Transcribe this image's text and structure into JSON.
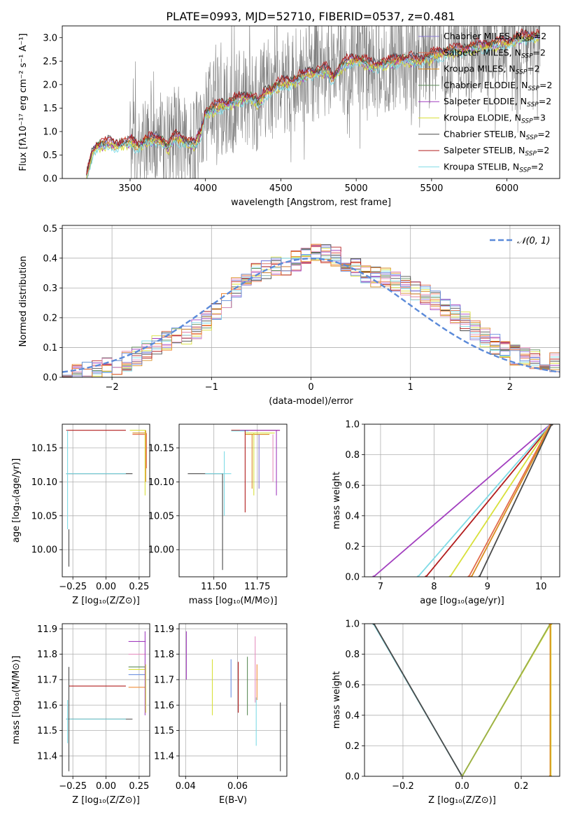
{
  "title": "PLATE=0993, MJD=52710, FIBERID=0537, z=0.481",
  "colors": {
    "data": "#808080",
    "Chabrier MILES": "#8c7bd4",
    "Salpeter MILES": "#e26b4b",
    "Kroupa MILES": "#d98c1f",
    "Chabrier ELODIE": "#5f8d5a",
    "Salpeter ELODIE": "#a23fbf",
    "Kroupa ELODIE": "#d8e03a",
    "Chabrier STELIB": "#4a4a4a",
    "Salpeter STELIB": "#b21d1d",
    "Kroupa STELIB": "#7fdbe6",
    "pink": "#e58fbf",
    "blue": "#6c8fe0",
    "olive": "#9ab04a",
    "orange": "#ef8d3a",
    "gaussian": "#5b8ad9",
    "grid": "#b0b0b0"
  },
  "chart_data": [
    {
      "id": "spectrum",
      "type": "line",
      "title": "PLATE=0993, MJD=52710, FIBERID=0537, z=0.481",
      "xlabel": "wavelength [Angstrom, rest frame]",
      "ylabel": "Flux [fλ10⁻¹⁷ erg cm⁻² s⁻¹ A⁻¹]",
      "xlim": [
        3050,
        6350
      ],
      "ylim": [
        0,
        3.25
      ],
      "xticks": [
        3500,
        4000,
        4500,
        5000,
        5500,
        6000
      ],
      "yticks": [
        0.0,
        0.5,
        1.0,
        1.5,
        2.0,
        2.5,
        3.0
      ],
      "grid": false,
      "legend_position": "top-right",
      "legend": [
        {
          "label": "Chabrier MILES, N",
          "sub": "SSP",
          "suffix": "=2"
        },
        {
          "label": "Salpeter MILES, N",
          "sub": "SSP",
          "suffix": "=2"
        },
        {
          "label": "Kroupa MILES, N",
          "sub": "SSP",
          "suffix": "=2"
        },
        {
          "label": "Chabrier ELODIE, N",
          "sub": "SSP",
          "suffix": "=2"
        },
        {
          "label": "Salpeter ELODIE, N",
          "sub": "SSP",
          "suffix": "=2"
        },
        {
          "label": "Kroupa ELODIE, N",
          "sub": "SSP",
          "suffix": "=3"
        },
        {
          "label": "Chabrier STELIB, N",
          "sub": "SSP",
          "suffix": "=2"
        },
        {
          "label": "Salpeter STELIB, N",
          "sub": "SSP",
          "suffix": "=2"
        },
        {
          "label": "Kroupa STELIB, N",
          "sub": "SSP",
          "suffix": "=2"
        }
      ],
      "model_anchor": {
        "x": [
          3210,
          3250,
          3280,
          3350,
          3400,
          3500,
          3560,
          3600,
          3700,
          3750,
          3800,
          3860,
          3930,
          3970,
          4000,
          4100,
          4200,
          4300,
          4350,
          4400,
          4500,
          4600,
          4700,
          4800,
          4850,
          4900,
          5000,
          5100,
          5200,
          5300,
          5400,
          5500,
          5600,
          5700,
          5800,
          5900,
          6000,
          6100,
          6220
        ],
        "y": [
          0.0,
          0.55,
          0.7,
          0.75,
          0.72,
          0.78,
          0.7,
          0.8,
          0.85,
          0.65,
          0.9,
          0.8,
          0.7,
          1.0,
          1.4,
          1.55,
          1.65,
          1.75,
          1.6,
          1.85,
          2.0,
          2.1,
          2.25,
          2.3,
          2.15,
          2.4,
          2.55,
          2.4,
          2.45,
          2.55,
          2.5,
          2.6,
          2.7,
          2.75,
          2.8,
          2.85,
          2.9,
          3.0,
          3.05
        ]
      },
      "data_range": [
        3210,
        6220
      ]
    },
    {
      "id": "residuals",
      "type": "line",
      "xlabel": "(data-model)/error",
      "ylabel": "Normed distribution",
      "xlim": [
        -2.5,
        2.5
      ],
      "ylim": [
        0,
        0.51
      ],
      "xticks": [
        -2,
        -1,
        0,
        1,
        2
      ],
      "yticks": [
        0.0,
        0.1,
        0.2,
        0.3,
        0.4,
        0.5
      ],
      "grid": true,
      "legend_position": "top-right",
      "gaussian_label": "𝒩(0, 1)",
      "bin_edges_range": [
        -2.5,
        2.5
      ],
      "bin_width": 0.1,
      "hist_envelope_x": [
        -2.5,
        -2.2,
        -2.0,
        -1.8,
        -1.6,
        -1.4,
        -1.2,
        -1.0,
        -0.8,
        -0.6,
        -0.4,
        -0.2,
        0.0,
        0.2,
        0.4,
        0.6,
        0.8,
        1.0,
        1.2,
        1.4,
        1.6,
        1.8,
        2.0,
        2.2,
        2.5
      ],
      "hist_envelope_y": [
        0.01,
        0.02,
        0.035,
        0.06,
        0.1,
        0.13,
        0.15,
        0.2,
        0.29,
        0.34,
        0.37,
        0.38,
        0.42,
        0.41,
        0.38,
        0.34,
        0.33,
        0.3,
        0.27,
        0.23,
        0.17,
        0.12,
        0.08,
        0.06,
        0.05
      ]
    },
    {
      "id": "age-vs-Z",
      "type": "scatter",
      "xlabel": "Z [log₁₀(Z/Z⊙)]",
      "ylabel": "age  [log₁₀(age/yr)]",
      "xlim": [
        -0.33,
        0.33
      ],
      "ylim": [
        9.96,
        10.185
      ],
      "xticks": [
        -0.25,
        0.0,
        0.25
      ],
      "xticklabels": [
        "−0.25",
        "0.00",
        "0.25"
      ],
      "yticks": [
        10.0,
        10.05,
        10.1,
        10.15
      ],
      "yticklabels": [
        "10.00",
        "10.05",
        "10.10",
        "10.15"
      ],
      "grid": true,
      "hlines": [
        {
          "y": 10.176,
          "x0": -0.3,
          "x1": 0.15,
          "color": "Salpeter STELIB"
        },
        {
          "y": 10.112,
          "x0": -0.3,
          "x1": 0.2,
          "color": "Chabrier STELIB"
        },
        {
          "y": 10.112,
          "x0": -0.3,
          "x1": 0.15,
          "color": "Kroupa STELIB"
        },
        {
          "y": 10.176,
          "x0": 0.18,
          "x1": 0.3,
          "color": "Kroupa ELODIE"
        },
        {
          "y": 10.172,
          "x0": 0.2,
          "x1": 0.3,
          "color": "Kroupa MILES"
        },
        {
          "y": 10.17,
          "x0": 0.2,
          "x1": 0.3,
          "color": "Salpeter MILES"
        }
      ],
      "vlines": [
        {
          "x": -0.28,
          "y0": 9.975,
          "y1": 10.03,
          "color": "Chabrier STELIB"
        },
        {
          "x": -0.29,
          "y0": 10.03,
          "y1": 10.176,
          "color": "Kroupa STELIB"
        },
        {
          "x": 0.295,
          "y0": 10.08,
          "y1": 10.176,
          "color": "Kroupa ELODIE"
        },
        {
          "x": 0.3,
          "y0": 10.1,
          "y1": 10.176,
          "color": "Kroupa MILES"
        },
        {
          "x": 0.305,
          "y0": 10.12,
          "y1": 10.172,
          "color": "Salpeter MILES"
        }
      ]
    },
    {
      "id": "age-vs-mass",
      "type": "scatter",
      "xlabel": "mass [log₁₀(M/M⊙)]",
      "ylabel": "",
      "xlim": [
        11.3,
        11.92
      ],
      "ylim": [
        9.96,
        10.185
      ],
      "xticks": [
        11.5,
        11.75
      ],
      "xticklabels": [
        "11.50",
        "11.75"
      ],
      "yticks": [
        10.0,
        10.05,
        10.1,
        10.15
      ],
      "yticklabels": [
        "10.00",
        "10.05",
        "10.10",
        "10.15"
      ],
      "grid": true,
      "hlines": [
        {
          "y": 10.112,
          "x0": 11.35,
          "x1": 11.55,
          "color": "Chabrier STELIB"
        },
        {
          "y": 10.112,
          "x0": 11.45,
          "x1": 11.6,
          "color": "Kroupa STELIB"
        },
        {
          "y": 10.176,
          "x0": 11.6,
          "x1": 11.88,
          "color": "Salpeter STELIB"
        },
        {
          "y": 10.176,
          "x0": 11.65,
          "x1": 11.88,
          "color": "Salpeter ELODIE"
        },
        {
          "y": 10.172,
          "x0": 11.68,
          "x1": 11.85,
          "color": "Kroupa ELODIE"
        },
        {
          "y": 10.17,
          "x0": 11.68,
          "x1": 11.82,
          "color": "Kroupa MILES"
        },
        {
          "y": 10.175,
          "x0": 11.6,
          "x1": 11.7,
          "color": "Kroupa STELIB"
        }
      ],
      "vlines": [
        {
          "x": 11.55,
          "y0": 9.97,
          "y1": 10.112,
          "color": "Chabrier STELIB"
        },
        {
          "x": 11.56,
          "y0": 10.05,
          "y1": 10.145,
          "color": "Kroupa STELIB"
        },
        {
          "x": 11.68,
          "y0": 10.055,
          "y1": 10.176,
          "color": "Salpeter STELIB"
        },
        {
          "x": 11.73,
          "y0": 10.08,
          "y1": 10.172,
          "color": "Kroupa ELODIE"
        },
        {
          "x": 11.72,
          "y0": 10.09,
          "y1": 10.17,
          "color": "Kroupa MILES"
        },
        {
          "x": 11.86,
          "y0": 10.08,
          "y1": 10.176,
          "color": "Salpeter ELODIE"
        },
        {
          "x": 11.76,
          "y0": 10.09,
          "y1": 10.17,
          "color": "Chabrier MILES"
        },
        {
          "x": 11.84,
          "y0": 10.1,
          "y1": 10.17,
          "color": "pink"
        }
      ]
    },
    {
      "id": "massweight-vs-age",
      "type": "line",
      "xlabel": "age  [log₁₀(age/yr)]",
      "ylabel": "mass weight",
      "xlim": [
        6.7,
        10.35
      ],
      "ylim": [
        0,
        1
      ],
      "xticks": [
        7,
        8,
        9,
        10
      ],
      "yticks": [
        0.0,
        0.2,
        0.4,
        0.6,
        0.8,
        1.0
      ],
      "yticklabels": [
        "0.0",
        "0.2",
        "0.4",
        "0.6",
        "0.8",
        "1.0"
      ],
      "grid": true,
      "series": [
        {
          "color": "Salpeter ELODIE",
          "x": [
            6.87,
            10.18
          ],
          "y": [
            0,
            1
          ]
        },
        {
          "color": "Kroupa STELIB",
          "x": [
            7.7,
            10.18
          ],
          "y": [
            0,
            1
          ]
        },
        {
          "color": "Salpeter STELIB",
          "x": [
            7.85,
            10.2
          ],
          "y": [
            0,
            1
          ]
        },
        {
          "color": "Kroupa ELODIE",
          "x": [
            8.3,
            10.18
          ],
          "y": [
            0,
            1
          ]
        },
        {
          "color": "Salpeter MILES",
          "x": [
            8.65,
            10.18
          ],
          "y": [
            0,
            1
          ]
        },
        {
          "color": "Kroupa MILES",
          "x": [
            8.7,
            10.2
          ],
          "y": [
            0,
            1
          ]
        },
        {
          "color": "Chabrier STELIB",
          "x": [
            8.85,
            10.2
          ],
          "y": [
            0,
            1
          ]
        }
      ]
    },
    {
      "id": "mass-vs-Z",
      "type": "scatter",
      "xlabel": "Z [log₁₀(Z/Z⊙)]",
      "ylabel": "mass [log₁₀(M/M⊙)]",
      "xlim": [
        -0.33,
        0.33
      ],
      "ylim": [
        11.32,
        11.92
      ],
      "xticks": [
        -0.25,
        0.0,
        0.25
      ],
      "xticklabels": [
        "−0.25",
        "0.00",
        "0.25"
      ],
      "yticks": [
        11.4,
        11.5,
        11.6,
        11.7,
        11.8,
        11.9
      ],
      "grid": true,
      "hlines": [
        {
          "y": 11.675,
          "x0": -0.28,
          "x1": 0.15,
          "color": "Salpeter STELIB"
        },
        {
          "y": 11.545,
          "x0": -0.3,
          "x1": 0.2,
          "color": "Chabrier STELIB"
        },
        {
          "y": 11.545,
          "x0": -0.3,
          "x1": 0.15,
          "color": "Kroupa STELIB"
        },
        {
          "y": 11.85,
          "x0": 0.17,
          "x1": 0.3,
          "color": "Salpeter ELODIE"
        },
        {
          "y": 11.8,
          "x0": 0.17,
          "x1": 0.3,
          "color": "pink"
        },
        {
          "y": 11.75,
          "x0": 0.17,
          "x1": 0.3,
          "color": "Chabrier ELODIE"
        },
        {
          "y": 11.74,
          "x0": 0.17,
          "x1": 0.3,
          "color": "Kroupa ELODIE"
        },
        {
          "y": 11.72,
          "x0": 0.17,
          "x1": 0.3,
          "color": "blue"
        },
        {
          "y": 11.67,
          "x0": 0.17,
          "x1": 0.3,
          "color": "orange"
        }
      ],
      "vlines": [
        {
          "x": -0.28,
          "y0": 11.34,
          "y1": 11.75,
          "color": "Chabrier STELIB"
        },
        {
          "x": -0.29,
          "y0": 11.45,
          "y1": 11.62,
          "color": "Kroupa STELIB"
        },
        {
          "x": 0.295,
          "y0": 11.56,
          "y1": 11.89,
          "color": "Salpeter ELODIE"
        },
        {
          "x": 0.3,
          "y0": 11.57,
          "y1": 11.76,
          "color": "Kroupa ELODIE"
        }
      ]
    },
    {
      "id": "mass-vs-EBV",
      "type": "scatter",
      "xlabel": "E(B-V)",
      "ylabel": "",
      "xlim": [
        0.0375,
        0.079
      ],
      "ylim": [
        11.32,
        11.92
      ],
      "xticks": [
        0.04,
        0.06
      ],
      "xticklabels": [
        "0.04",
        "0.06"
      ],
      "yticks": [
        11.4,
        11.5,
        11.6,
        11.7,
        11.8,
        11.9
      ],
      "grid": true,
      "vlines": [
        {
          "x": 0.0403,
          "y0": 11.7,
          "y1": 11.89,
          "color": "Salpeter ELODIE"
        },
        {
          "x": 0.0503,
          "y0": 11.56,
          "y1": 11.78,
          "color": "Kroupa ELODIE"
        },
        {
          "x": 0.0575,
          "y0": 11.63,
          "y1": 11.78,
          "color": "blue"
        },
        {
          "x": 0.0603,
          "y0": 11.57,
          "y1": 11.77,
          "color": "Salpeter STELIB"
        },
        {
          "x": 0.0638,
          "y0": 11.56,
          "y1": 11.79,
          "color": "Chabrier ELODIE"
        },
        {
          "x": 0.0668,
          "y0": 11.61,
          "y1": 11.87,
          "color": "pink"
        },
        {
          "x": 0.0672,
          "y0": 11.44,
          "y1": 11.63,
          "color": "Kroupa STELIB"
        },
        {
          "x": 0.0675,
          "y0": 11.62,
          "y1": 11.76,
          "color": "orange"
        },
        {
          "x": 0.0765,
          "y0": 11.34,
          "y1": 11.61,
          "color": "Chabrier STELIB"
        }
      ]
    },
    {
      "id": "massweight-vs-Z",
      "type": "line",
      "xlabel": "Z [log₁₀(Z/Z⊙)]",
      "ylabel": "mass weight",
      "xlim": [
        -0.33,
        0.33
      ],
      "ylim": [
        0,
        1
      ],
      "xticks": [
        -0.2,
        0.0,
        0.2
      ],
      "xticklabels": [
        "−0.2",
        "0.0",
        "0.2"
      ],
      "yticks": [
        0.0,
        0.2,
        0.4,
        0.6,
        0.8,
        1.0
      ],
      "yticklabels": [
        "0.0",
        "0.2",
        "0.4",
        "0.6",
        "0.8",
        "1.0"
      ],
      "grid": true,
      "series": [
        {
          "color": "Kroupa STELIB",
          "x": [
            -0.3,
            0.0
          ],
          "y": [
            1,
            0
          ]
        },
        {
          "color": "Chabrier STELIB",
          "x": [
            -0.298,
            0.0
          ],
          "y": [
            1,
            0
          ]
        },
        {
          "color": "Kroupa ELODIE",
          "x": [
            0.0,
            0.3
          ],
          "y": [
            0,
            1
          ]
        },
        {
          "color": "olive",
          "x": [
            0.0,
            0.298
          ],
          "y": [
            0,
            1
          ]
        },
        {
          "color": "Kroupa ELODIE",
          "x": [
            0.3,
            0.3
          ],
          "y": [
            0,
            1
          ]
        },
        {
          "color": "Kroupa MILES",
          "x": [
            0.298,
            0.298
          ],
          "y": [
            0,
            1
          ]
        }
      ]
    }
  ]
}
